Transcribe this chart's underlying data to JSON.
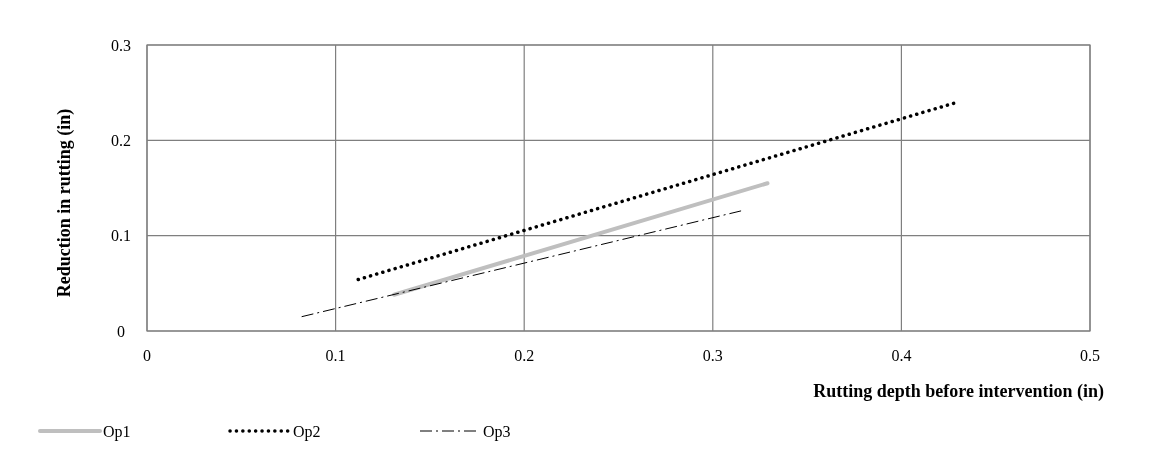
{
  "chart_data": {
    "type": "line",
    "xlabel": "Rutting depth before intervention (in)",
    "ylabel": "Reduction in rutting (in)",
    "xlim": [
      0,
      0.5
    ],
    "xticks": [
      0,
      0.1,
      0.2,
      0.3,
      0.4,
      0.5
    ],
    "ylim": [
      0,
      0.3
    ],
    "yticks": [
      0,
      0.1,
      0.2,
      0.3
    ],
    "grid": true,
    "legend": "bottom",
    "marker": "none",
    "series": [
      {
        "name": "Op1",
        "color": "#bfbfbf",
        "line_style": "solid",
        "x": [
          0.131,
          0.329
        ],
        "values": [
          0.038,
          0.155
        ]
      },
      {
        "name": "Op2",
        "color": "#000000",
        "line_style": "dotted",
        "x": [
          0.112,
          0.428
        ],
        "values": [
          0.054,
          0.239
        ]
      },
      {
        "name": "Op3",
        "color": "#000000",
        "line_style": "dashdot",
        "x": [
          0.082,
          0.315
        ],
        "values": [
          0.015,
          0.126
        ]
      }
    ]
  }
}
